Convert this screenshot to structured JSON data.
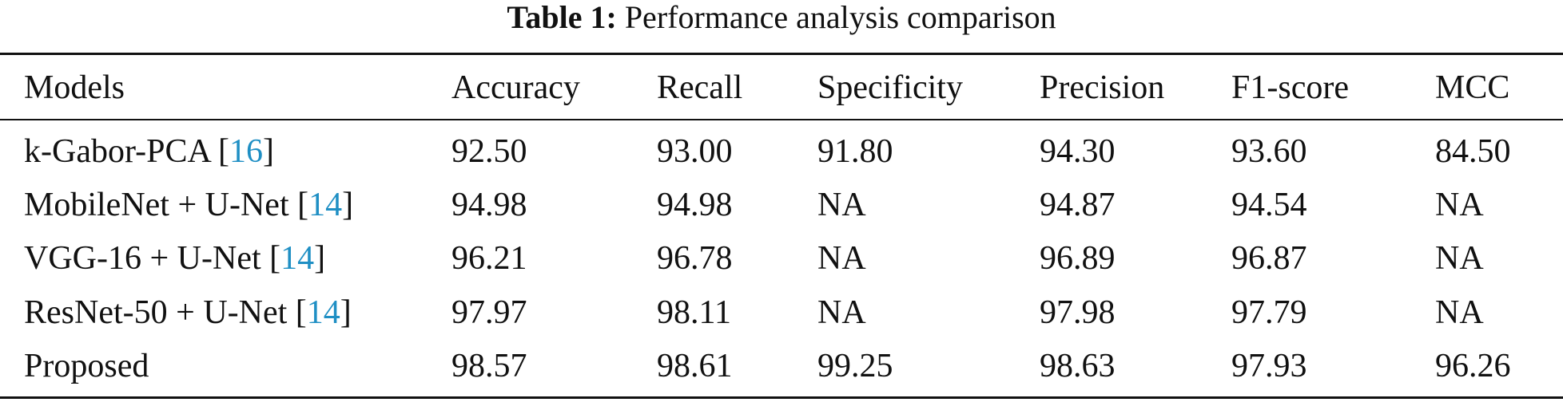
{
  "caption": {
    "label": "Table 1:",
    "text": "Performance analysis comparison"
  },
  "table": {
    "headers": [
      "Models",
      "Accuracy",
      "Recall",
      "Specificity",
      "Precision",
      "F1-score",
      "MCC"
    ],
    "rows": [
      [
        {
          "name": "k-Gabor-PCA",
          "ref": "[16]"
        },
        "92.50",
        "93.00",
        "91.80",
        "94.30",
        "93.60",
        "84.50"
      ],
      [
        {
          "name": "MobileNet + U-Net",
          "ref": "[14]"
        },
        "94.98",
        "94.98",
        "NA",
        "94.87",
        "94.54",
        "NA"
      ],
      [
        {
          "name": "VGG-16 + U-Net",
          "ref": "[14]"
        },
        "96.21",
        "96.78",
        "NA",
        "96.89",
        "96.87",
        "NA"
      ],
      [
        {
          "name": "ResNet-50 + U-Net",
          "ref": "[14]"
        },
        "97.97",
        "98.11",
        "NA",
        "97.98",
        "97.79",
        "NA"
      ],
      [
        {
          "name": "Proposed"
        },
        "98.57",
        "98.61",
        "99.25",
        "98.63",
        "97.93",
        "96.26"
      ]
    ]
  }
}
